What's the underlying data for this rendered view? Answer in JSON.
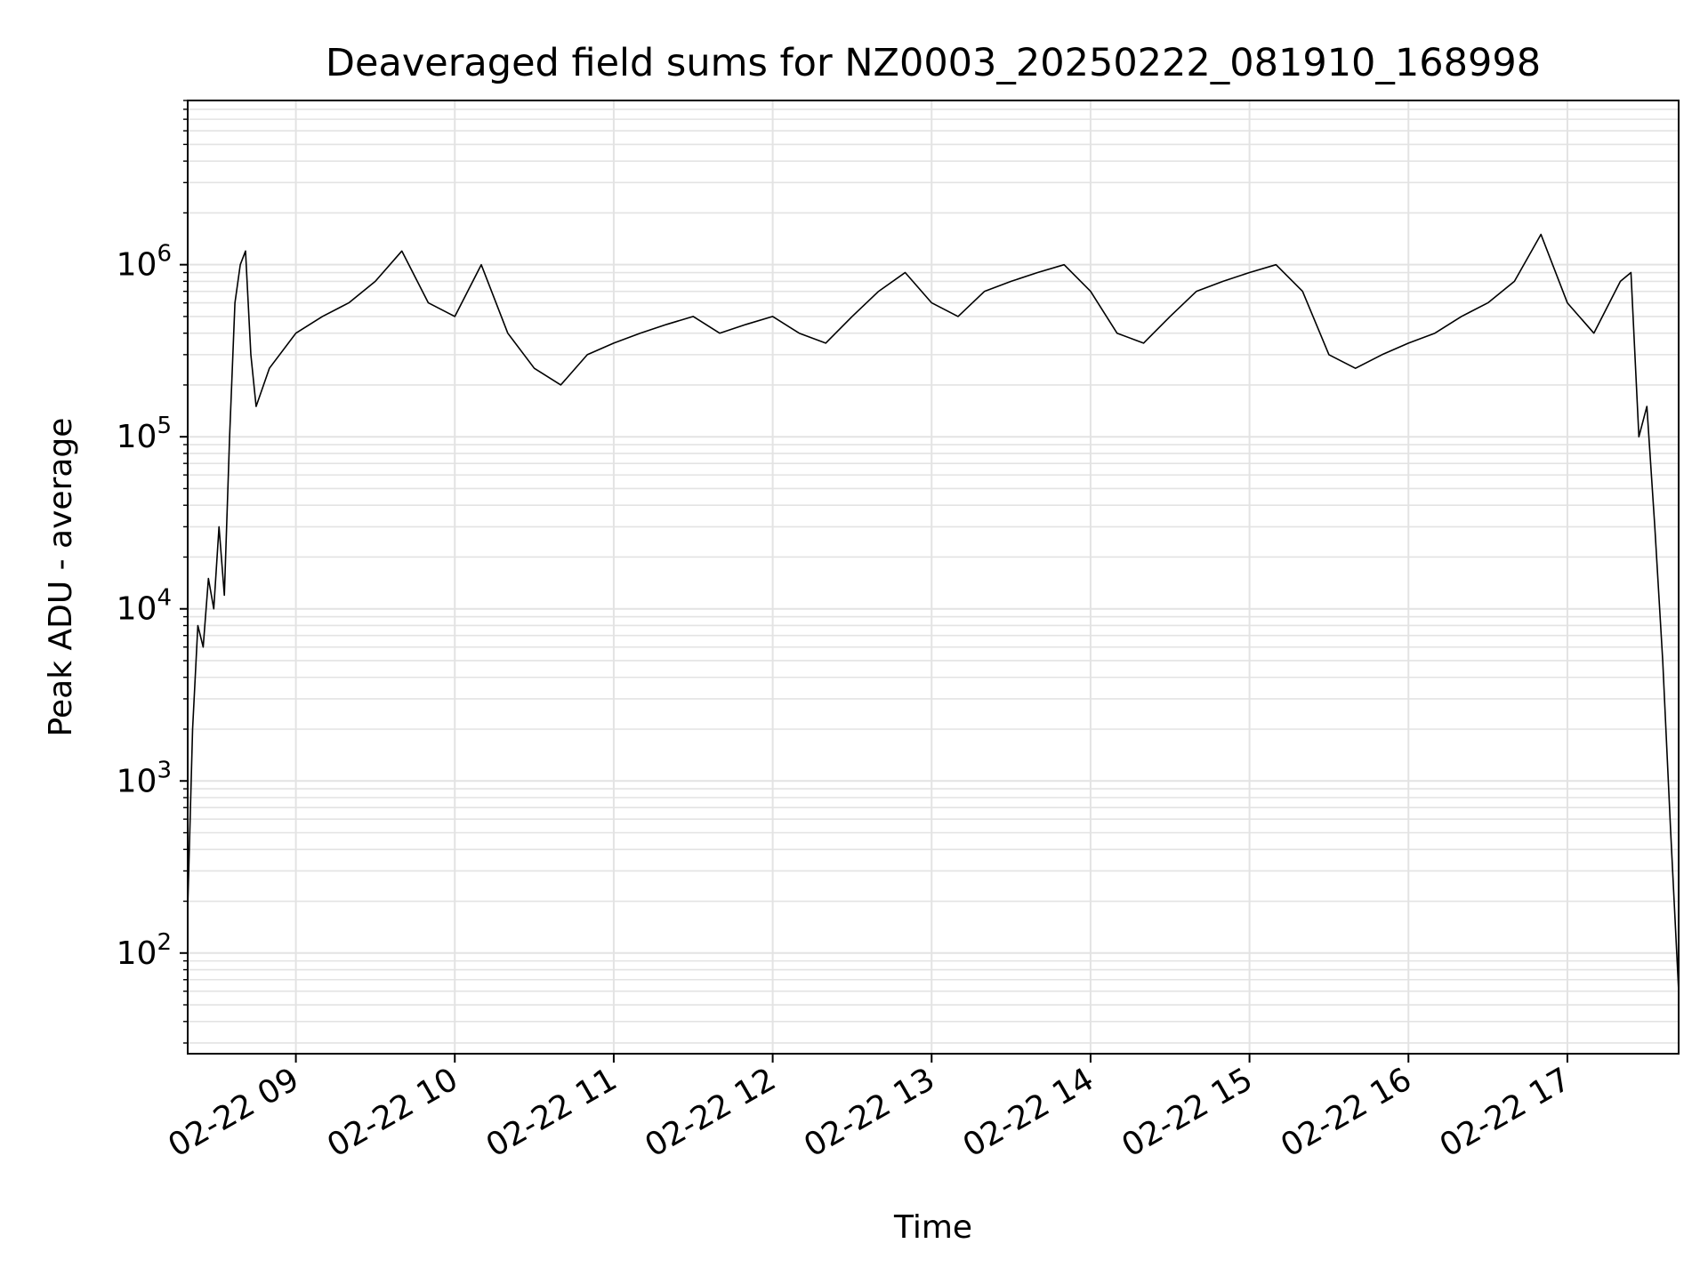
{
  "chart_data": {
    "type": "line",
    "title": "Deaveraged field sums for NZ0003_20250222_081910_168998",
    "xlabel": "Time",
    "ylabel": "Peak ADU - average",
    "x_domain": [
      "2025-02-22T08:19:10",
      "2025-02-22T17:42:00"
    ],
    "x_ticks": [
      {
        "time": "2025-02-22T09:00",
        "label": "02-22 09"
      },
      {
        "time": "2025-02-22T10:00",
        "label": "02-22 10"
      },
      {
        "time": "2025-02-22T11:00",
        "label": "02-22 11"
      },
      {
        "time": "2025-02-22T12:00",
        "label": "02-22 12"
      },
      {
        "time": "2025-02-22T13:00",
        "label": "02-22 13"
      },
      {
        "time": "2025-02-22T14:00",
        "label": "02-22 14"
      },
      {
        "time": "2025-02-22T15:00",
        "label": "02-22 15"
      },
      {
        "time": "2025-02-22T16:00",
        "label": "02-22 16"
      },
      {
        "time": "2025-02-22T17:00",
        "label": "02-22 17"
      }
    ],
    "y_scale": "log",
    "ylim": [
      26,
      9000000
    ],
    "y_ticks": [
      {
        "value": 100,
        "base": "10",
        "exp": "2"
      },
      {
        "value": 1000,
        "base": "10",
        "exp": "3"
      },
      {
        "value": 10000,
        "base": "10",
        "exp": "4"
      },
      {
        "value": 100000,
        "base": "10",
        "exp": "5"
      },
      {
        "value": 1000000,
        "base": "10",
        "exp": "6"
      }
    ],
    "grid": true,
    "grid_minor": true,
    "line_color": "#000000",
    "grid_color": "#e3e3e3",
    "series": [
      {
        "x": [
          "2025-02-22T08:19:10",
          "2025-02-22T08:21:00",
          "2025-02-22T08:23:00",
          "2025-02-22T08:25:00",
          "2025-02-22T08:27:00",
          "2025-02-22T08:29:00",
          "2025-02-22T08:31:00",
          "2025-02-22T08:33:00",
          "2025-02-22T08:35:00",
          "2025-02-22T08:37:00",
          "2025-02-22T08:39:00",
          "2025-02-22T08:41:00",
          "2025-02-22T08:43:00",
          "2025-02-22T08:45:00",
          "2025-02-22T08:50:00",
          "2025-02-22T09:00:00",
          "2025-02-22T09:10:00",
          "2025-02-22T09:20:00",
          "2025-02-22T09:30:00",
          "2025-02-22T09:40:00",
          "2025-02-22T09:50:00",
          "2025-02-22T10:00:00",
          "2025-02-22T10:10:00",
          "2025-02-22T10:20:00",
          "2025-02-22T10:30:00",
          "2025-02-22T10:40:00",
          "2025-02-22T10:50:00",
          "2025-02-22T11:00:00",
          "2025-02-22T11:10:00",
          "2025-02-22T11:20:00",
          "2025-02-22T11:30:00",
          "2025-02-22T11:40:00",
          "2025-02-22T11:50:00",
          "2025-02-22T12:00:00",
          "2025-02-22T12:10:00",
          "2025-02-22T12:20:00",
          "2025-02-22T12:30:00",
          "2025-02-22T12:40:00",
          "2025-02-22T12:50:00",
          "2025-02-22T13:00:00",
          "2025-02-22T13:10:00",
          "2025-02-22T13:20:00",
          "2025-02-22T13:30:00",
          "2025-02-22T13:40:00",
          "2025-02-22T13:50:00",
          "2025-02-22T14:00:00",
          "2025-02-22T14:10:00",
          "2025-02-22T14:20:00",
          "2025-02-22T14:30:00",
          "2025-02-22T14:40:00",
          "2025-02-22T14:50:00",
          "2025-02-22T15:00:00",
          "2025-02-22T15:10:00",
          "2025-02-22T15:20:00",
          "2025-02-22T15:30:00",
          "2025-02-22T15:40:00",
          "2025-02-22T15:50:00",
          "2025-02-22T16:00:00",
          "2025-02-22T16:10:00",
          "2025-02-22T16:20:00",
          "2025-02-22T16:30:00",
          "2025-02-22T16:40:00",
          "2025-02-22T16:50:00",
          "2025-02-22T17:00:00",
          "2025-02-22T17:10:00",
          "2025-02-22T17:20:00",
          "2025-02-22T17:24:00",
          "2025-02-22T17:27:00",
          "2025-02-22T17:30:00",
          "2025-02-22T17:33:00",
          "2025-02-22T17:36:00",
          "2025-02-22T17:39:00",
          "2025-02-22T17:42:00"
        ],
        "y": [
          180,
          2000,
          8000,
          6000,
          15000,
          10000,
          30000,
          12000,
          100000,
          600000,
          1000000,
          1200000,
          300000,
          150000,
          250000,
          400000,
          500000,
          600000,
          800000,
          1200000,
          600000,
          500000,
          1000000,
          400000,
          250000,
          200000,
          300000,
          350000,
          400000,
          450000,
          500000,
          400000,
          450000,
          500000,
          400000,
          350000,
          500000,
          700000,
          900000,
          600000,
          500000,
          700000,
          800000,
          900000,
          1000000,
          700000,
          400000,
          350000,
          500000,
          700000,
          800000,
          900000,
          1000000,
          700000,
          300000,
          250000,
          300000,
          350000,
          400000,
          500000,
          600000,
          800000,
          1500000,
          600000,
          400000,
          800000,
          900000,
          100000,
          150000,
          30000,
          5000,
          500,
          60
        ]
      }
    ]
  }
}
